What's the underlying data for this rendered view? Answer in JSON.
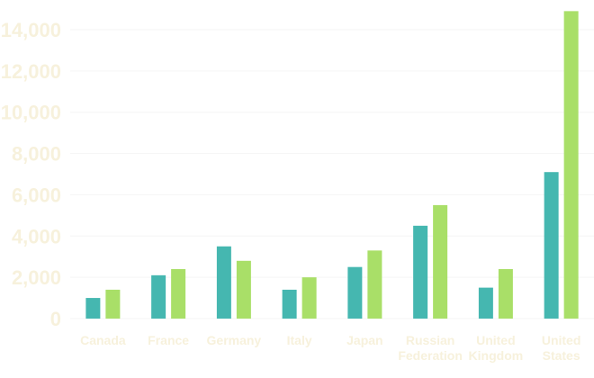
{
  "chart_data": {
    "type": "bar",
    "categories": [
      "Canada",
      "France",
      "Germany",
      "Italy",
      "Japan",
      "Russian Federation",
      "United Kingdom",
      "United States"
    ],
    "category_lines": [
      [
        "Canada"
      ],
      [
        "France"
      ],
      [
        "Germany"
      ],
      [
        "Italy"
      ],
      [
        "Japan"
      ],
      [
        "Russian",
        "Federation"
      ],
      [
        "United",
        "Kingdom"
      ],
      [
        "United",
        "States"
      ]
    ],
    "series": [
      {
        "values": [
          1000,
          2100,
          3500,
          1400,
          2500,
          4500,
          1500,
          7100
        ],
        "color": "#45b7b0"
      },
      {
        "values": [
          1400,
          2400,
          2800,
          2000,
          3300,
          5500,
          2400,
          14900
        ],
        "color": "#a9df68"
      }
    ],
    "y_ticks": [
      "0",
      "2,000",
      "4,000",
      "6,000",
      "8,000",
      "10,000",
      "12,000",
      "14,000"
    ],
    "ylim": [
      0,
      15000
    ],
    "grid": true,
    "title": "",
    "xlabel": "",
    "ylabel": "",
    "colors": {
      "axis_text": "#f7f1dc",
      "grid": "#f5f5f5",
      "background": "#ffffff"
    }
  }
}
